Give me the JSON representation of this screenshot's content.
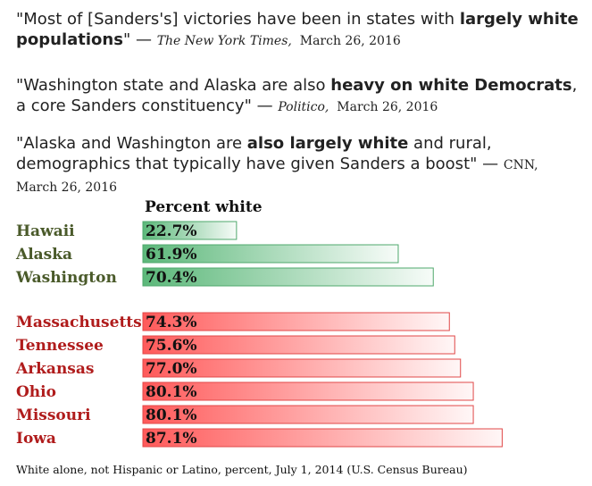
{
  "quotes": [
    {
      "pre": "\"Most of [Sanders's] victories have been in states with ",
      "bold": "largely white populations",
      "post": "\" —",
      "source": "The New York Times,",
      "date": "March 26, 2016"
    },
    {
      "pre": "\"Washington state and Alaska are also ",
      "bold": "heavy on white Democrats",
      "post": ", a core Sanders constituency\" —",
      "source": "Politico,",
      "date": "March 26, 2016"
    },
    {
      "pre": "\"Alaska and Washington are ",
      "bold": "also largely white",
      "post": " and rural, demographics that typically have given Sanders a boost\" —",
      "source": "CNN, March 26, 2016",
      "date": ""
    }
  ],
  "chart_data": {
    "type": "bar",
    "orientation": "horizontal",
    "title": "Percent white",
    "xlim": [
      0,
      100
    ],
    "groups": [
      {
        "name": "green",
        "color": "#5cb87a",
        "label_color": "#4a5a2a",
        "categories": [
          "Hawaii",
          "Alaska",
          "Washington"
        ],
        "values": [
          22.7,
          61.9,
          70.4
        ],
        "labels": [
          "22.7%",
          "61.9%",
          "70.4%"
        ]
      },
      {
        "name": "red",
        "color": "#ff5a5a",
        "label_color": "#b01c1c",
        "categories": [
          "Massachusetts",
          "Tennessee",
          "Arkansas",
          "Ohio",
          "Missouri",
          "Iowa"
        ],
        "values": [
          74.3,
          75.6,
          77.0,
          80.1,
          80.1,
          87.1
        ],
        "labels": [
          "74.3%",
          "75.6%",
          "77.0%",
          "80.1%",
          "80.1%",
          "87.1%"
        ]
      }
    ]
  },
  "footnote": "White alone, not Hispanic or Latino, percent, July 1, 2014  (U.S. Census Bureau)"
}
